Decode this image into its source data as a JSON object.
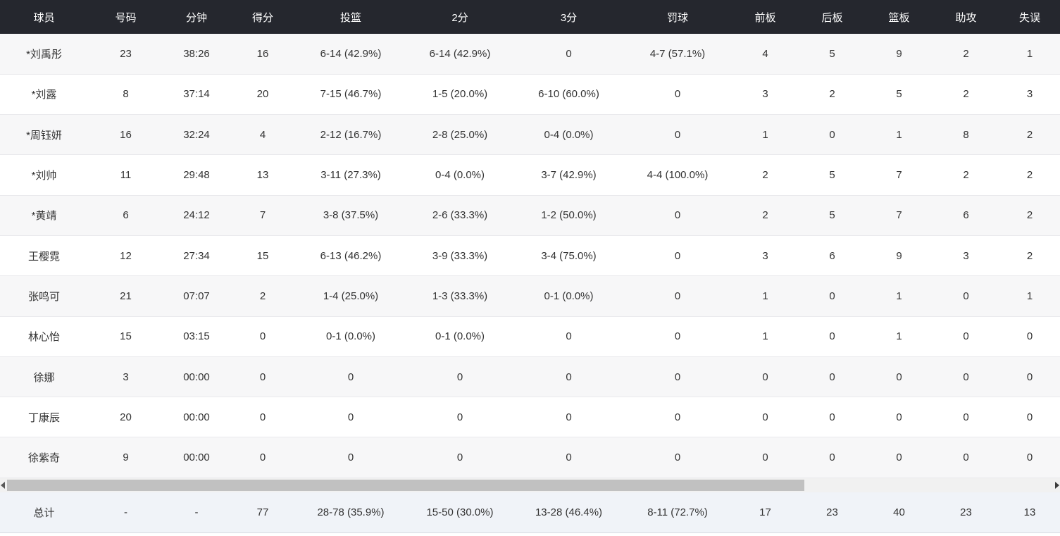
{
  "table": {
    "columns": [
      "球员",
      "号码",
      "分钟",
      "得分",
      "投篮",
      "2分",
      "3分",
      "罚球",
      "前板",
      "后板",
      "篮板",
      "助攻",
      "失误"
    ],
    "rows": [
      [
        "*刘禹彤",
        "23",
        "38:26",
        "16",
        "6-14 (42.9%)",
        "6-14 (42.9%)",
        "0",
        "4-7 (57.1%)",
        "4",
        "5",
        "9",
        "2",
        "1"
      ],
      [
        "*刘露",
        "8",
        "37:14",
        "20",
        "7-15 (46.7%)",
        "1-5 (20.0%)",
        "6-10 (60.0%)",
        "0",
        "3",
        "2",
        "5",
        "2",
        "3"
      ],
      [
        "*周钰妍",
        "16",
        "32:24",
        "4",
        "2-12 (16.7%)",
        "2-8 (25.0%)",
        "0-4 (0.0%)",
        "0",
        "1",
        "0",
        "1",
        "8",
        "2"
      ],
      [
        "*刘帅",
        "11",
        "29:48",
        "13",
        "3-11 (27.3%)",
        "0-4 (0.0%)",
        "3-7 (42.9%)",
        "4-4 (100.0%)",
        "2",
        "5",
        "7",
        "2",
        "2"
      ],
      [
        "*黄靖",
        "6",
        "24:12",
        "7",
        "3-8 (37.5%)",
        "2-6 (33.3%)",
        "1-2 (50.0%)",
        "0",
        "2",
        "5",
        "7",
        "6",
        "2"
      ],
      [
        "王樱霓",
        "12",
        "27:34",
        "15",
        "6-13 (46.2%)",
        "3-9 (33.3%)",
        "3-4 (75.0%)",
        "0",
        "3",
        "6",
        "9",
        "3",
        "2"
      ],
      [
        "张鸣可",
        "21",
        "07:07",
        "2",
        "1-4 (25.0%)",
        "1-3 (33.3%)",
        "0-1 (0.0%)",
        "0",
        "1",
        "0",
        "1",
        "0",
        "1"
      ],
      [
        "林心怡",
        "15",
        "03:15",
        "0",
        "0-1 (0.0%)",
        "0-1 (0.0%)",
        "0",
        "0",
        "1",
        "0",
        "1",
        "0",
        "0"
      ],
      [
        "徐娜",
        "3",
        "00:00",
        "0",
        "0",
        "0",
        "0",
        "0",
        "0",
        "0",
        "0",
        "0",
        "0"
      ],
      [
        "丁康辰",
        "20",
        "00:00",
        "0",
        "0",
        "0",
        "0",
        "0",
        "0",
        "0",
        "0",
        "0",
        "0"
      ],
      [
        "徐紫奇",
        "9",
        "00:00",
        "0",
        "0",
        "0",
        "0",
        "0",
        "0",
        "0",
        "0",
        "0",
        "0"
      ]
    ],
    "total": [
      "总计",
      "-",
      "-",
      "77",
      "28-78 (35.9%)",
      "15-50 (30.0%)",
      "13-28 (46.4%)",
      "8-11 (72.7%)",
      "17",
      "23",
      "40",
      "23",
      "13"
    ]
  },
  "colors": {
    "header_bg": "#25272e",
    "header_text": "#ffffff",
    "row_alt_bg": "#f7f7f8",
    "row_bg": "#ffffff",
    "total_row_bg": "#f0f3f8",
    "scrollbar_track": "#f1f1f1",
    "scrollbar_thumb": "#c1c1c1"
  },
  "icons": {
    "scroll_left": "left-triangle",
    "scroll_right": "right-triangle"
  }
}
